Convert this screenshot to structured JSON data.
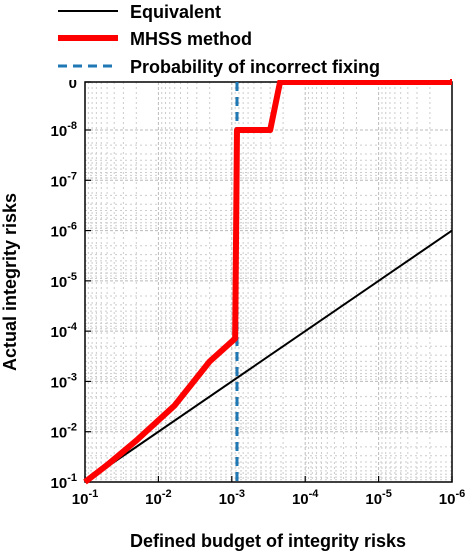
{
  "chart_data": {
    "type": "line",
    "xlabel": "Defined budget of integrity risks",
    "ylabel": "Actual integrity risks",
    "x_scale": "log-reversed",
    "y_scale": "log-reversed",
    "xlim": [
      0.1,
      1e-06
    ],
    "ylim": [
      0.1,
      0
    ],
    "grid": true,
    "legend_position": "top-left",
    "x_ticks": [
      {
        "value": 0.1,
        "base": "10",
        "exp": "-1"
      },
      {
        "value": 0.01,
        "base": "10",
        "exp": "-2"
      },
      {
        "value": 0.001,
        "base": "10",
        "exp": "-3"
      },
      {
        "value": 0.0001,
        "base": "10",
        "exp": "-4"
      },
      {
        "value": 1e-05,
        "base": "10",
        "exp": "-5"
      },
      {
        "value": 1e-06,
        "base": "10",
        "exp": "-6"
      }
    ],
    "y_ticks": [
      {
        "value": 0.1,
        "base": "10",
        "exp": "-1"
      },
      {
        "value": 0.01,
        "base": "10",
        "exp": "-2"
      },
      {
        "value": 0.001,
        "base": "10",
        "exp": "-3"
      },
      {
        "value": 0.0001,
        "base": "10",
        "exp": "-4"
      },
      {
        "value": 1e-05,
        "base": "10",
        "exp": "-5"
      },
      {
        "value": 1e-06,
        "base": "10",
        "exp": "-6"
      },
      {
        "value": 1e-07,
        "base": "10",
        "exp": "-7"
      },
      {
        "value": 1e-08,
        "base": "10",
        "exp": "-8"
      },
      {
        "value": 0,
        "base": "0",
        "exp": ""
      }
    ],
    "series": [
      {
        "name": "Equivalent",
        "color": "#000000",
        "style": "solid",
        "points": [
          [
            0.1,
            0.1
          ],
          [
            1e-06,
            1e-06
          ]
        ]
      },
      {
        "name": "MHSS method",
        "color": "#ff0000",
        "style": "solid-thick",
        "points": [
          [
            0.1,
            0.1
          ],
          [
            0.05,
            0.046
          ],
          [
            0.02,
            0.015
          ],
          [
            0.006,
            0.003
          ],
          [
            0.002,
            0.0004
          ],
          [
            0.0009,
            0.00014
          ],
          [
            0.00085,
            1e-08
          ],
          [
            0.0003,
            1e-08
          ],
          [
            0.00022,
            0
          ],
          [
            1e-06,
            0
          ]
        ]
      },
      {
        "name": "Probability of incorrect fixing",
        "color": "#1f77b4",
        "style": "dashed",
        "x_value": 0.00085
      }
    ]
  }
}
